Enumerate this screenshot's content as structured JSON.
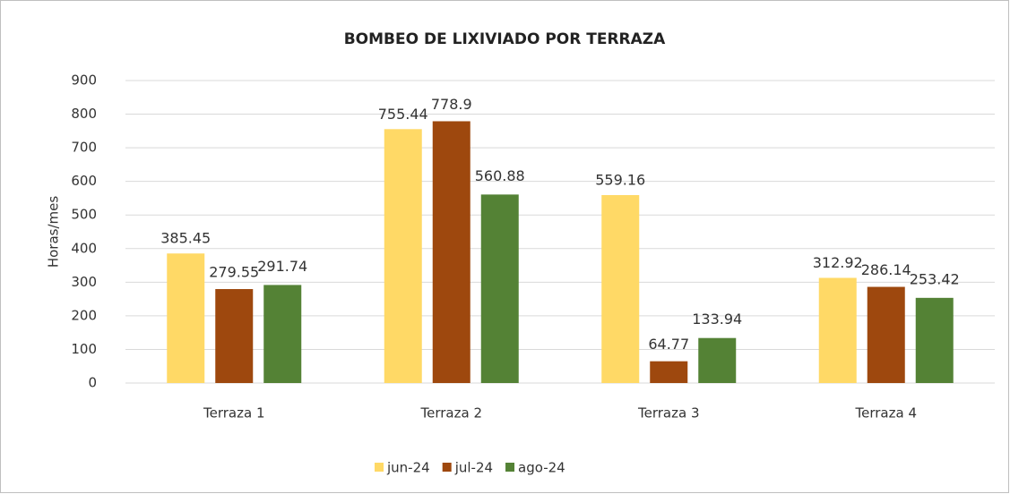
{
  "chart_data": {
    "type": "bar",
    "title": "BOMBEO DE LIXIVIADO POR TERRAZA",
    "y_label": "Horas/mes",
    "categories": [
      "Terraza 1",
      "Terraza 2",
      "Terraza 3",
      "Terraza 4"
    ],
    "series": [
      {
        "name": "jun-24",
        "color": "#ffd966",
        "values": [
          385.45,
          755.44,
          559.16,
          312.92
        ]
      },
      {
        "name": "jul-24",
        "color": "#9e480e",
        "values": [
          279.55,
          778.9,
          64.77,
          286.14
        ]
      },
      {
        "name": "ago-24",
        "color": "#548235",
        "values": [
          291.74,
          560.88,
          133.94,
          253.42
        ]
      }
    ],
    "ylim": [
      0,
      900
    ],
    "yticks": [
      0,
      100,
      200,
      300,
      400,
      500,
      600,
      700,
      800,
      900
    ],
    "grid": true,
    "legend": "bottom"
  }
}
